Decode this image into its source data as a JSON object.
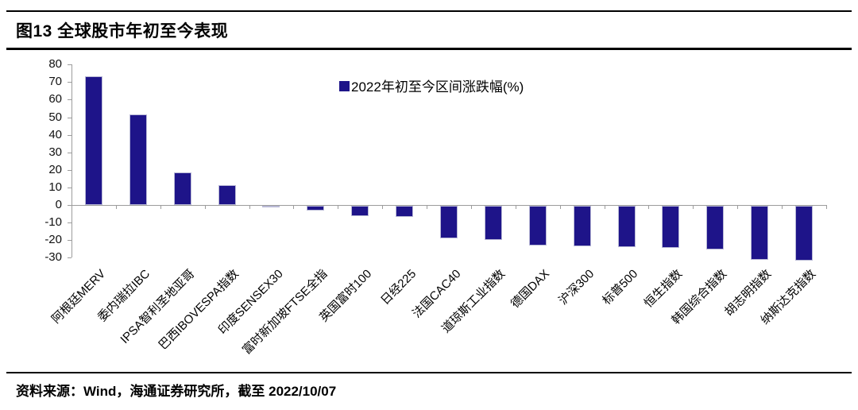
{
  "header": {
    "title": "图13 全球股市年初至今表现"
  },
  "footer": {
    "source": "资料来源：Wind，海通证券研究所，截至 2022/10/07"
  },
  "chart_data": {
    "type": "bar",
    "title": "图13 全球股市年初至今表现",
    "legend": "2022年初至今区间涨跌幅(%)",
    "legend_position": "top-center",
    "categories": [
      "阿根廷MERV",
      "委内瑞拉IBC",
      "IPSA智利圣地亚哥",
      "巴西IBOVESPA指数",
      "印度SENSEX30",
      "富时新加坡FTSE全指",
      "英国富时100",
      "日经225",
      "法国CAC40",
      "道琼斯工业指数",
      "德国DAX",
      "沪深300",
      "标普500",
      "恒生指数",
      "韩国综合指数",
      "胡志明指数",
      "纳斯达克指数"
    ],
    "values": [
      73.5,
      51.5,
      18.4,
      11.2,
      -1.0,
      -2.7,
      -5.9,
      -6.2,
      -18.4,
      -19.5,
      -22.5,
      -23.1,
      -23.7,
      -24.2,
      -25.0,
      -30.9,
      -31.2
    ],
    "xlabel": "",
    "ylabel": "",
    "ylim": [
      -30,
      80
    ],
    "ytick_step": 10,
    "grid": false,
    "bar_color": "#1e1489",
    "axis_color": "#9c9c9c"
  }
}
